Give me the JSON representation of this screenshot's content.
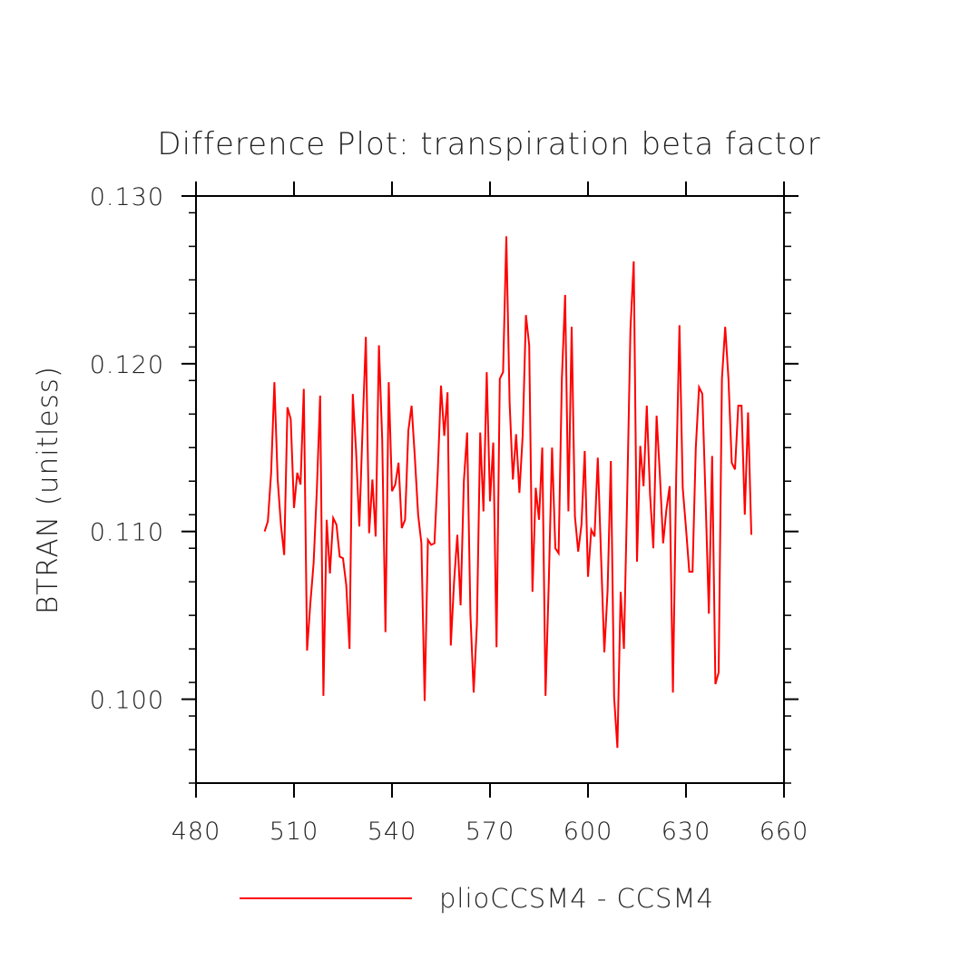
{
  "chart_data": {
    "type": "line",
    "title": "Difference Plot: transpiration beta factor",
    "xlabel": "",
    "ylabel": "BTRAN  (unitless)",
    "xlim": [
      480,
      660
    ],
    "ylim": [
      0.095,
      0.13
    ],
    "xticks": [
      480,
      510,
      540,
      570,
      600,
      630,
      660
    ],
    "xtick_labels": [
      "480",
      "510",
      "540",
      "570",
      "600",
      "630",
      "660"
    ],
    "yticks": [
      0.1,
      0.11,
      0.12,
      0.13
    ],
    "ytick_labels": [
      "0.100",
      "0.110",
      "0.120",
      "0.130"
    ],
    "grid": false,
    "legend": "bottom",
    "series": [
      {
        "name": "plioCCSM4 - CCSM4",
        "color": "#ff0000",
        "x": [
          501,
          502,
          503,
          504,
          505,
          506,
          507,
          508,
          509,
          510,
          511,
          512,
          513,
          514,
          515,
          516,
          517,
          518,
          519,
          520,
          521,
          522,
          523,
          524,
          525,
          526,
          527,
          528,
          529,
          530,
          531,
          532,
          533,
          534,
          535,
          536,
          537,
          538,
          539,
          540,
          541,
          542,
          543,
          544,
          545,
          546,
          547,
          548,
          549,
          550,
          551,
          552,
          553,
          554,
          555,
          556,
          557,
          558,
          559,
          560,
          561,
          562,
          563,
          564,
          565,
          566,
          567,
          568,
          569,
          570,
          571,
          572,
          573,
          574,
          575,
          576,
          577,
          578,
          579,
          580,
          581,
          582,
          583,
          584,
          585,
          586,
          587,
          588,
          589,
          590,
          591,
          592,
          593,
          594,
          595,
          596,
          597,
          598,
          599,
          600,
          601,
          602,
          603,
          604,
          605,
          606,
          607,
          608,
          609,
          610,
          611,
          612,
          613,
          614,
          615,
          616,
          617,
          618,
          619,
          620,
          621,
          622,
          623,
          624,
          625,
          626,
          627,
          628,
          629,
          630,
          631,
          632,
          633,
          634,
          635,
          636,
          637,
          638,
          639,
          640,
          641,
          642,
          643,
          644,
          645,
          646,
          647,
          648,
          649,
          650
        ],
        "values": [
          0.11,
          0.1106,
          0.1135,
          0.1189,
          0.1131,
          0.1104,
          0.1086,
          0.1174,
          0.1167,
          0.1114,
          0.1135,
          0.1128,
          0.1185,
          0.1029,
          0.1057,
          0.1081,
          0.1125,
          0.1181,
          0.1002,
          0.1107,
          0.1075,
          0.1108,
          0.1104,
          0.1085,
          0.1084,
          0.1068,
          0.103,
          0.1182,
          0.1148,
          0.1103,
          0.1162,
          0.1216,
          0.1099,
          0.1131,
          0.1097,
          0.1211,
          0.1155,
          0.104,
          0.1189,
          0.1124,
          0.1128,
          0.1141,
          0.1102,
          0.1107,
          0.116,
          0.1175,
          0.1144,
          0.111,
          0.1093,
          0.0999,
          0.1095,
          0.1092,
          0.1093,
          0.1135,
          0.1187,
          0.1157,
          0.1183,
          0.1032,
          0.107,
          0.1098,
          0.1056,
          0.113,
          0.1159,
          0.1051,
          0.1004,
          0.1045,
          0.1159,
          0.1112,
          0.1195,
          0.1118,
          0.1153,
          0.1031,
          0.1191,
          0.1195,
          0.1276,
          0.1177,
          0.1131,
          0.1158,
          0.1123,
          0.1157,
          0.1229,
          0.1211,
          0.1064,
          0.1126,
          0.1107,
          0.115,
          0.1002,
          0.107,
          0.115,
          0.109,
          0.1087,
          0.1191,
          0.1241,
          0.1112,
          0.1222,
          0.1109,
          0.1088,
          0.1104,
          0.1148,
          0.1073,
          0.1101,
          0.1097,
          0.1144,
          0.1085,
          0.1028,
          0.1065,
          0.1142,
          0.1001,
          0.0971,
          0.1064,
          0.103,
          0.1122,
          0.1221,
          0.1261,
          0.1082,
          0.1151,
          0.1127,
          0.1175,
          0.1122,
          0.109,
          0.1169,
          0.1134,
          0.1093,
          0.1113,
          0.1127,
          0.1004,
          0.1133,
          0.1223,
          0.1126,
          0.1102,
          0.1076,
          0.1076,
          0.115,
          0.1186,
          0.1182,
          0.1119,
          0.1051,
          0.1145,
          0.1009,
          0.1016,
          0.1191,
          0.1222,
          0.1191,
          0.1141,
          0.1137,
          0.1175,
          0.1175,
          0.111,
          0.1171,
          0.1098
        ]
      }
    ]
  }
}
